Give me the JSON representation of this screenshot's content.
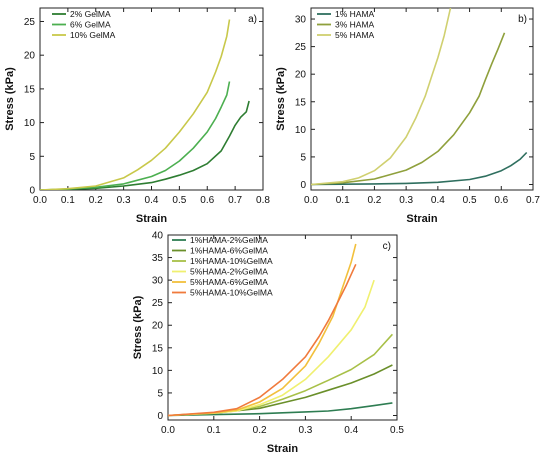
{
  "chart_data": [
    {
      "type": "line",
      "panel_label": "a)",
      "xlabel": "Strain",
      "ylabel": "Stress (kPa)",
      "xlim": [
        0.0,
        0.8
      ],
      "ylim": [
        0,
        27
      ],
      "xticks": [
        0.0,
        0.1,
        0.2,
        0.3,
        0.4,
        0.5,
        0.6,
        0.7,
        0.8
      ],
      "yticks": [
        0,
        5,
        10,
        15,
        20,
        25
      ],
      "xtick_decimals": 1,
      "legend_position": "top-left",
      "series": [
        {
          "name": "2% GelMA",
          "color": "#2e7d32",
          "x": [
            0,
            0.1,
            0.2,
            0.3,
            0.4,
            0.45,
            0.5,
            0.55,
            0.6,
            0.65,
            0.68,
            0.7,
            0.72,
            0.74,
            0.75
          ],
          "y": [
            0,
            0.1,
            0.25,
            0.6,
            1.1,
            1.6,
            2.2,
            2.9,
            3.9,
            5.8,
            8.0,
            9.6,
            10.8,
            11.6,
            13.2
          ]
        },
        {
          "name": "6% GelMA",
          "color": "#4caf50",
          "x": [
            0,
            0.1,
            0.2,
            0.3,
            0.4,
            0.45,
            0.5,
            0.55,
            0.6,
            0.63,
            0.65,
            0.67,
            0.68
          ],
          "y": [
            0,
            0.15,
            0.4,
            0.9,
            2.0,
            2.9,
            4.3,
            6.2,
            8.6,
            10.6,
            12.3,
            14.1,
            16.1
          ]
        },
        {
          "name": "10% GelMA",
          "color": "#c8c84a",
          "x": [
            0,
            0.1,
            0.2,
            0.3,
            0.35,
            0.4,
            0.45,
            0.5,
            0.55,
            0.6,
            0.63,
            0.65,
            0.67,
            0.68
          ],
          "y": [
            0,
            0.2,
            0.6,
            1.8,
            3.0,
            4.4,
            6.2,
            8.6,
            11.3,
            14.5,
            17.5,
            19.8,
            22.8,
            25.3
          ]
        }
      ]
    },
    {
      "type": "line",
      "panel_label": "b)",
      "xlabel": "Strain",
      "ylabel": "Stress (kPa)",
      "xlim": [
        0.0,
        0.7
      ],
      "ylim": [
        -1,
        32
      ],
      "xticks": [
        0.0,
        0.1,
        0.2,
        0.3,
        0.4,
        0.5,
        0.6,
        0.7
      ],
      "yticks": [
        0,
        5,
        10,
        15,
        20,
        25,
        30
      ],
      "xtick_decimals": 1,
      "legend_position": "top-left",
      "series": [
        {
          "name": "1% HAMA",
          "color": "#2f6f5f",
          "x": [
            0,
            0.1,
            0.2,
            0.3,
            0.4,
            0.5,
            0.55,
            0.6,
            0.63,
            0.66,
            0.68
          ],
          "y": [
            0,
            0.05,
            0.1,
            0.2,
            0.4,
            0.9,
            1.5,
            2.5,
            3.4,
            4.6,
            5.8
          ]
        },
        {
          "name": "3% HAMA",
          "color": "#8fa03c",
          "x": [
            0,
            0.1,
            0.2,
            0.3,
            0.35,
            0.4,
            0.45,
            0.5,
            0.53,
            0.55,
            0.57,
            0.59,
            0.61
          ],
          "y": [
            0,
            0.3,
            1.0,
            2.6,
            4.0,
            6.0,
            9.0,
            13.0,
            16.0,
            19.0,
            21.9,
            24.6,
            27.5
          ]
        },
        {
          "name": "5% HAMA",
          "color": "#d0d070",
          "x": [
            0,
            0.1,
            0.15,
            0.2,
            0.25,
            0.3,
            0.33,
            0.36,
            0.38,
            0.4,
            0.42,
            0.44
          ],
          "y": [
            0,
            0.5,
            1.2,
            2.5,
            4.8,
            8.6,
            12.0,
            16.0,
            19.5,
            23.0,
            27.0,
            32.0
          ]
        }
      ]
    },
    {
      "type": "line",
      "panel_label": "c)",
      "xlabel": "Strain",
      "ylabel": "Stress (kPa)",
      "xlim": [
        0.0,
        0.5
      ],
      "ylim": [
        -1,
        40
      ],
      "xticks": [
        0.0,
        0.1,
        0.2,
        0.3,
        0.4,
        0.5
      ],
      "yticks": [
        0,
        5,
        10,
        15,
        20,
        25,
        30,
        35,
        40
      ],
      "xtick_decimals": 1,
      "legend_position": "top-left",
      "series": [
        {
          "name": "1%HAMA-2%GelMA",
          "color": "#2e7d52",
          "x": [
            0,
            0.1,
            0.2,
            0.3,
            0.35,
            0.4,
            0.45,
            0.49
          ],
          "y": [
            0,
            0.2,
            0.4,
            0.8,
            1.0,
            1.5,
            2.2,
            2.8
          ]
        },
        {
          "name": "1%HAMA-6%GelMA",
          "color": "#6a8f2a",
          "x": [
            0,
            0.1,
            0.2,
            0.25,
            0.3,
            0.35,
            0.4,
            0.45,
            0.49
          ],
          "y": [
            0,
            0.5,
            1.6,
            2.8,
            4.0,
            5.6,
            7.2,
            9.2,
            11.2
          ]
        },
        {
          "name": "1%HAMA-10%GelMA",
          "color": "#a8c048",
          "x": [
            0,
            0.1,
            0.15,
            0.2,
            0.25,
            0.3,
            0.35,
            0.4,
            0.45,
            0.49
          ],
          "y": [
            0,
            0.6,
            1.2,
            2.0,
            3.6,
            5.5,
            7.8,
            10.2,
            13.5,
            18.0
          ]
        },
        {
          "name": "5%HAMA-2%GelMA",
          "color": "#f0f070",
          "x": [
            0,
            0.1,
            0.15,
            0.2,
            0.25,
            0.3,
            0.35,
            0.4,
            0.43,
            0.45
          ],
          "y": [
            0,
            0.5,
            1.0,
            2.4,
            4.5,
            8.0,
            13.0,
            19.0,
            24.0,
            30.0
          ]
        },
        {
          "name": "5%HAMA-6%GelMA",
          "color": "#f2c03c",
          "x": [
            0,
            0.1,
            0.15,
            0.2,
            0.25,
            0.3,
            0.33,
            0.36,
            0.38,
            0.4,
            0.41
          ],
          "y": [
            0,
            0.6,
            1.2,
            3.0,
            6.0,
            11.0,
            16.0,
            22.0,
            28.0,
            34.0,
            38.0
          ]
        },
        {
          "name": "5%HAMA-10%GelMA",
          "color": "#f07a3c",
          "x": [
            0,
            0.1,
            0.15,
            0.2,
            0.25,
            0.3,
            0.33,
            0.35,
            0.37,
            0.39,
            0.41
          ],
          "y": [
            0,
            0.7,
            1.5,
            4.0,
            8.0,
            13.0,
            17.5,
            21.0,
            25.0,
            29.0,
            33.5
          ]
        }
      ]
    }
  ]
}
